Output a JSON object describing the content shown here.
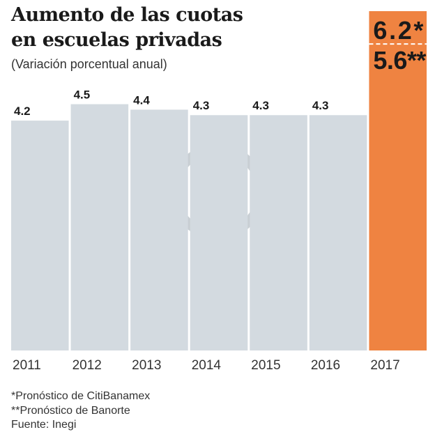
{
  "chart_data": {
    "type": "bar",
    "title": "Aumento de las cuotas en escuelas privadas",
    "title_lines": [
      "Aumento de las cuotas",
      "en escuelas privadas"
    ],
    "subtitle": "(Variación porcentual anual)",
    "categories": [
      "2011",
      "2012",
      "2013",
      "2014",
      "2015",
      "2016",
      "2017"
    ],
    "values": [
      4.2,
      4.5,
      4.4,
      4.3,
      4.3,
      4.3,
      6.2
    ],
    "value_labels": [
      "4.2",
      "4.5",
      "4.4",
      "4.3",
      "4.3",
      "4.3",
      "6.2*"
    ],
    "secondary": {
      "category": "2017",
      "value": 5.6,
      "label": "5.6**"
    },
    "ylim": [
      0,
      6.2
    ],
    "grid": false,
    "colors": {
      "bar": "#d3dae0",
      "highlight": "#ef8341",
      "text": "#1a1a1a"
    },
    "notes": [
      "*Pronóstico de CitiBanamex",
      "**Pronóstico de Banorte",
      "Fuente: Inegi"
    ]
  }
}
